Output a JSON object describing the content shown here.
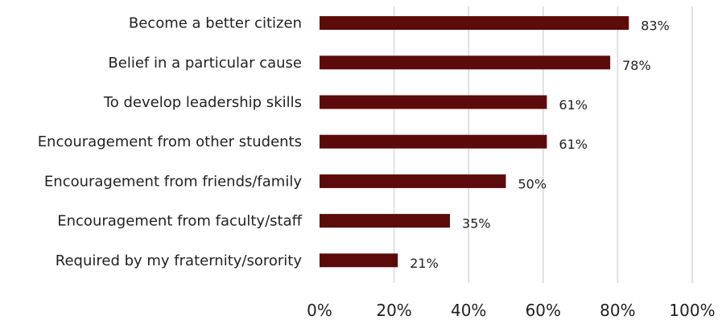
{
  "chart_data": {
    "type": "bar",
    "orientation": "horizontal",
    "categories": [
      "Become a better citizen",
      "Belief in a particular cause",
      "To develop leadership skills",
      "Encouragement from other students",
      "Encouragement from friends/family",
      "Encouragement from faculty/staff",
      "Required by my fraternity/sorority"
    ],
    "values": [
      83,
      78,
      61,
      61,
      50,
      35,
      21
    ],
    "value_labels": [
      "83%",
      "78%",
      "61%",
      "61%",
      "50%",
      "35%",
      "21%"
    ],
    "xlim": [
      0,
      100
    ],
    "x_ticks": [
      0,
      20,
      40,
      60,
      80,
      100
    ],
    "x_tick_labels": [
      "0%",
      "20%",
      "40%",
      "60%",
      "80%",
      "100%"
    ],
    "grid": true,
    "legend": false,
    "colors": {
      "bar": "#5c0a0a"
    }
  }
}
